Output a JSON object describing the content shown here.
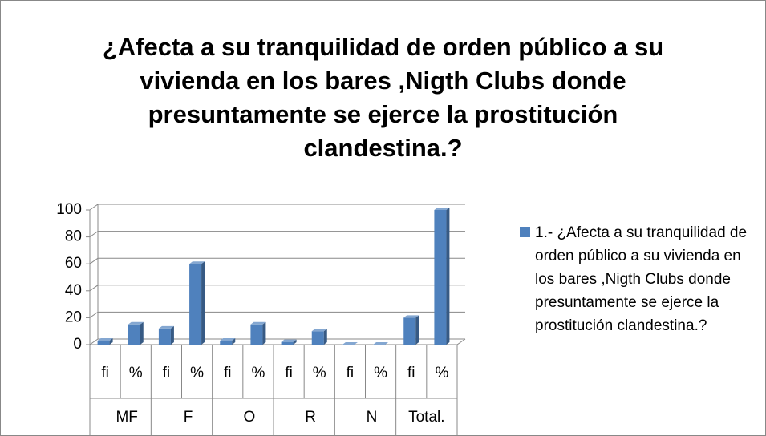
{
  "chart_data": {
    "type": "bar3d",
    "title": "¿Afecta a su tranquilidad de orden público a su vivienda en los bares ,Nigth Clubs donde presuntamente se ejerce la prostitución clandestina.?",
    "categories": [
      "fi",
      "%",
      "fi",
      "%",
      "fi",
      "%",
      "fi",
      "%",
      "fi",
      "%",
      "fi",
      "%"
    ],
    "groups": [
      "MF",
      "F",
      "O",
      "R",
      "N",
      "Total."
    ],
    "series": [
      {
        "name": "1.- ¿Afecta a su tranquilidad de orden público a su vivienda en los bares ,Nigth Clubs donde presuntamente se ejerce la prostitución clandestina.?",
        "color": "#4f81bd",
        "values": [
          3,
          15,
          12,
          60,
          3,
          15,
          2,
          10,
          0,
          0,
          20,
          100
        ]
      }
    ],
    "ylim": [
      0,
      100
    ],
    "yticks": [
      0,
      20,
      40,
      60,
      80,
      100
    ],
    "grid": true,
    "legend": "right"
  }
}
